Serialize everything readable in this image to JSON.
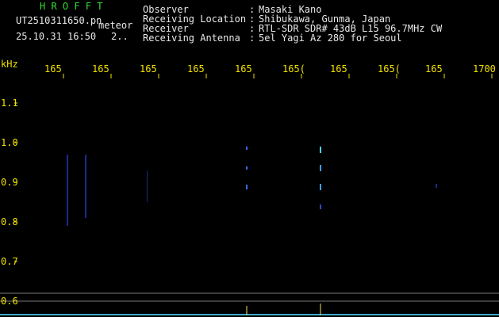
{
  "header": {
    "app": "H R O F F T",
    "file": "UT2510311650.pn",
    "mode": "meteor",
    "datetime": "25.10.31 16:50",
    "extra": "2..",
    "info": [
      {
        "label": "Observer",
        "sep": ":",
        "value": "Masaki Kano"
      },
      {
        "label": "Receiving Location",
        "sep": ":",
        "value": "Shibukawa, Gunma, Japan"
      },
      {
        "label": "Receiver",
        "sep": ":",
        "value": "RTL-SDR SDR# 43dB L15 96.7MHz CW"
      },
      {
        "label": "Receiving Antenna",
        "sep": ":",
        "value": "5el Yagi Az 280 for Seoul"
      }
    ]
  },
  "top_axis": {
    "labels": [
      "165",
      "165",
      "165",
      "165",
      "165",
      "165(",
      "165",
      "165(",
      "165",
      "1700"
    ]
  },
  "left_axis": {
    "unit": "kHz",
    "labels": [
      "1.1",
      "1.0",
      "0.9",
      "0.8",
      "0.7",
      "0.6"
    ]
  }
}
